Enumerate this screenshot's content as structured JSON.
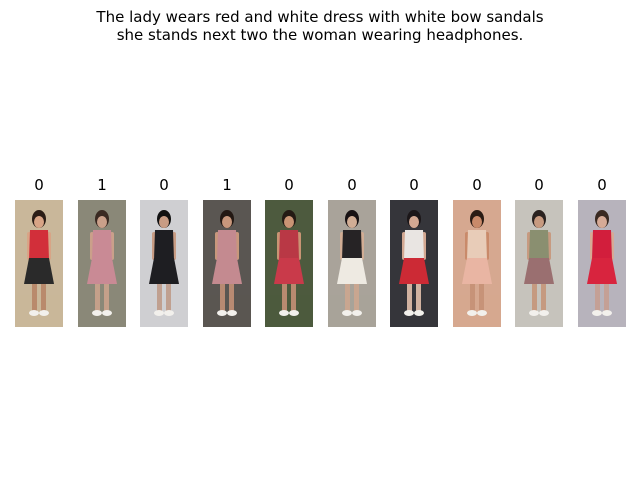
{
  "caption": {
    "line1": "The lady wears red and white dress with white bow sandals",
    "line2": "she stands next two the woman wearing headphones."
  },
  "gallery": [
    {
      "label": "0",
      "bg": "#c9b79a",
      "top": "#d22f3a",
      "bottom": "#2a2a2a",
      "legs": "#b98a6c",
      "hair": "#2b1d16",
      "skin": "#d8a486"
    },
    {
      "label": "1",
      "bg": "#8a8878",
      "top": "#c98a95",
      "bottom": "#c98a95",
      "legs": "#c4a08a",
      "hair": "#3a2a22",
      "skin": "#caa08a"
    },
    {
      "label": "0",
      "bg": "#cfcfd2",
      "top": "#1e1e22",
      "bottom": "#1e1e22",
      "legs": "#c0a090",
      "hair": "#111111",
      "skin": "#c89c84"
    },
    {
      "label": "1",
      "bg": "#5a5652",
      "top": "#c48a90",
      "bottom": "#c48a90",
      "legs": "#b88a72",
      "hair": "#231813",
      "skin": "#c8977c"
    },
    {
      "label": "0",
      "bg": "#4d5a3e",
      "top": "#b93845",
      "bottom": "#c93a4a",
      "legs": "#b88a70",
      "hair": "#241a14",
      "skin": "#c99474"
    },
    {
      "label": "0",
      "bg": "#a9a39a",
      "top": "#262325",
      "bottom": "#eeeae2",
      "legs": "#c9a690",
      "hair": "#181214",
      "skin": "#d1ad95"
    },
    {
      "label": "0",
      "bg": "#35353a",
      "top": "#e9e5e2",
      "bottom": "#cc2a35",
      "legs": "#d1b2a0",
      "hair": "#1b1618",
      "skin": "#d3a892"
    },
    {
      "label": "0",
      "bg": "#d6a890",
      "top": "#e8ccb8",
      "bottom": "#e9b5a3",
      "legs": "#c79378",
      "hair": "#2a1b14",
      "skin": "#c98a6a"
    },
    {
      "label": "0",
      "bg": "#c6c3bc",
      "top": "#8a8f70",
      "bottom": "#9a6f70",
      "legs": "#c59a80",
      "hair": "#2a2220",
      "skin": "#c79a80"
    },
    {
      "label": "0",
      "bg": "#b7b3bc",
      "top": "#d21e3c",
      "bottom": "#d8243e",
      "legs": "#c4a096",
      "hair": "#3a2a22",
      "skin": "#d6aa96"
    }
  ]
}
